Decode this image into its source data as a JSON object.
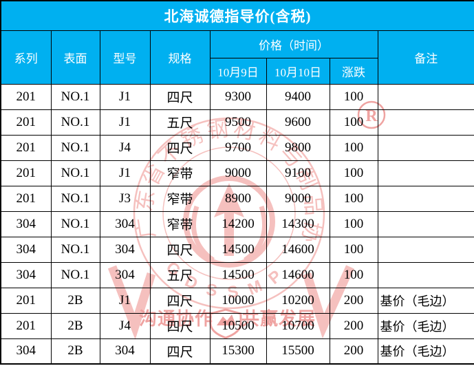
{
  "title": "北海诚德指导价(含税)",
  "header": {
    "series": "系列",
    "surface": "表面",
    "model": "型号",
    "spec": "规格",
    "price_group": "价格（时间）",
    "date1": "10月9日",
    "date2": "10月10日",
    "change": "涨跌",
    "remark": "备注"
  },
  "rows": [
    {
      "series": "201",
      "surface": "NO.1",
      "model": "J1",
      "spec": "四尺",
      "price1": "9300",
      "price2": "9400",
      "change": "100",
      "remark": ""
    },
    {
      "series": "201",
      "surface": "NO.1",
      "model": "J1",
      "spec": "五尺",
      "price1": "9500",
      "price2": "9600",
      "change": "100",
      "remark": ""
    },
    {
      "series": "201",
      "surface": "NO.1",
      "model": "J4",
      "spec": "四尺",
      "price1": "9700",
      "price2": "9800",
      "change": "100",
      "remark": ""
    },
    {
      "series": "201",
      "surface": "NO.1",
      "model": "J1",
      "spec": "窄带",
      "price1": "9000",
      "price2": "9100",
      "change": "100",
      "remark": ""
    },
    {
      "series": "201",
      "surface": "NO.1",
      "model": "J3",
      "spec": "窄带",
      "price1": "8900",
      "price2": "9000",
      "change": "100",
      "remark": ""
    },
    {
      "series": "304",
      "surface": "NO.1",
      "model": "304",
      "spec": "窄带",
      "price1": "14200",
      "price2": "14300",
      "change": "100",
      "remark": ""
    },
    {
      "series": "304",
      "surface": "NO.1",
      "model": "304",
      "spec": "四尺",
      "price1": "14500",
      "price2": "14600",
      "change": "100",
      "remark": ""
    },
    {
      "series": "304",
      "surface": "NO.1",
      "model": "304",
      "spec": "五尺",
      "price1": "14500",
      "price2": "14600",
      "change": "100",
      "remark": ""
    },
    {
      "series": "201",
      "surface": "2B",
      "model": "J1",
      "spec": "四尺",
      "price1": "10000",
      "price2": "10200",
      "change": "200",
      "remark": "基价（毛边）"
    },
    {
      "series": "201",
      "surface": "2B",
      "model": "J4",
      "spec": "四尺",
      "price1": "10500",
      "price2": "10700",
      "change": "200",
      "remark": "基价（毛边）"
    },
    {
      "series": "304",
      "surface": "2B",
      "model": "304",
      "spec": "四尺",
      "price1": "15300",
      "price2": "15500",
      "change": "200",
      "remark": "基价（毛边）"
    }
  ],
  "watermark": {
    "org_name": "广东省不锈钢材料与制品协会",
    "acronym": "GDSSMPA",
    "slogan_left": "沟通协作",
    "slogan_right": "共赢发展",
    "registered_mark": "R",
    "color_light": "#f5c0be",
    "color_medium": "#efa3a1"
  },
  "colors": {
    "header_bg": "#00b0f0",
    "border": "#000000",
    "header_text": "#ffffff",
    "body_text": "#000000"
  }
}
